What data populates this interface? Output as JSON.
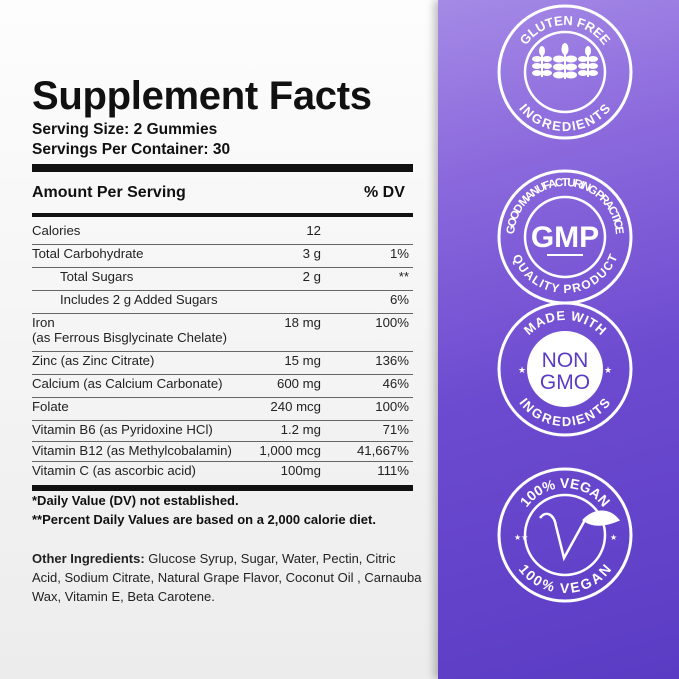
{
  "title": "Supplement Facts",
  "serving_size": "Serving Size: 2 Gummies",
  "servings_per_container": "Servings Per Container: 30",
  "header": {
    "amount": "Amount Per Serving",
    "dv": "% DV"
  },
  "rows": [
    {
      "name": "Calories",
      "amount": "12",
      "dv": ""
    },
    {
      "name": "Total Carbohydrate",
      "amount": "3 g",
      "dv": "1%"
    },
    {
      "name": "Total Sugars",
      "amount": "2 g",
      "dv": "**"
    },
    {
      "name": "Includes 2 g Added Sugars",
      "amount": "",
      "dv": "6%"
    },
    {
      "name": "Iron",
      "name2": "(as  Ferrous Bisglycinate Chelate)",
      "amount": "18 mg",
      "dv": "100%"
    },
    {
      "name": "Zinc (as Zinc Citrate)",
      "amount": "15 mg",
      "dv": "136%"
    },
    {
      "name": "Calcium (as Calcium Carbonate)",
      "amount": "600 mg",
      "dv": "46%"
    },
    {
      "name": "Folate",
      "amount": "240 mcg",
      "dv": "100%"
    },
    {
      "name": "Vitamin B6 (as Pyridoxine HCl)",
      "amount": "1.2 mg",
      "dv": "71%"
    },
    {
      "name": "Vitamin B12 (as Methylcobalamin)",
      "amount": "1,000 mcg",
      "dv": "41,667%"
    },
    {
      "name": "Vitamin C (as ascorbic acid)",
      "amount": "100mg",
      "dv": "111%"
    }
  ],
  "footnotes": [
    "*Daily Value (DV) not established.",
    "**Percent Daily Values are based on a 2,000 calorie diet."
  ],
  "other_ingredients": {
    "label": "Other Ingredients:",
    "text": " Glucose Syrup, Sugar, Water, Pectin, Citric Acid, Sodium Citrate, Natural Grape Flavor, Coconut Oil , Carnauba Wax, Vitamin E, Beta Carotene."
  },
  "badges": [
    {
      "top": "GLUTEN FREE",
      "bottom": "INGREDIENTS",
      "icon": "wheat-icon"
    },
    {
      "top": "GOOD MANUFACTURING PRACTICE",
      "center": "GMP",
      "bottom": "QUALITY PRODUCT"
    },
    {
      "top": "MADE WITH",
      "center1": "NON",
      "center2": "GMO",
      "bottom": "INGREDIENTS"
    },
    {
      "top": "100% VEGAN",
      "bottom": "100% VEGAN",
      "icon": "vegan-v-leaf-icon"
    }
  ],
  "colors": {
    "panel_top": "#a58ae6",
    "panel_bottom": "#5a3cc4",
    "text": "#111111"
  }
}
